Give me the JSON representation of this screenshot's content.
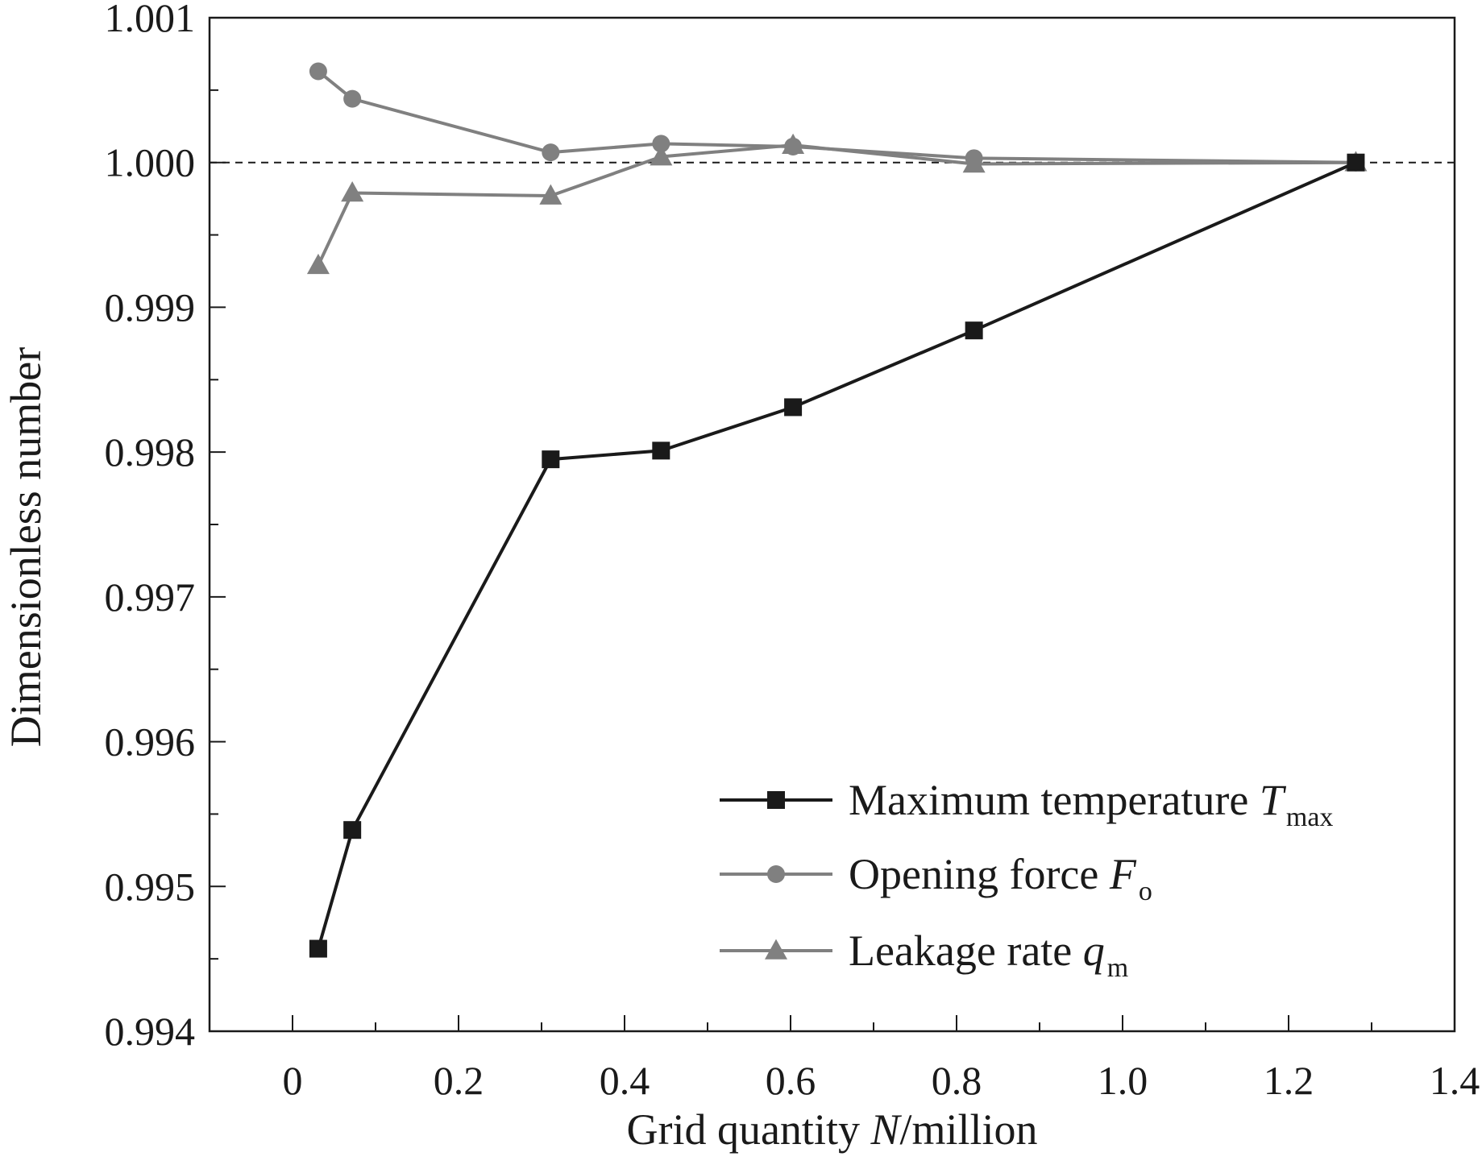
{
  "chart_data": {
    "type": "line",
    "xlabel": {
      "prefix": "Grid quantity ",
      "var": "N",
      "suffix": "/million"
    },
    "ylabel": "Dimensionless number",
    "xlim": [
      -0.1,
      1.4
    ],
    "ylim": [
      0.994,
      1.001
    ],
    "xticks": [
      0,
      0.2,
      0.4,
      0.6,
      0.8,
      1.0,
      1.2,
      1.4
    ],
    "xtick_labels": [
      "0",
      "0.2",
      "0.4",
      "0.6",
      "0.8",
      "1.0",
      "1.2",
      "1.4"
    ],
    "yticks": [
      0.994,
      0.995,
      0.996,
      0.997,
      0.998,
      0.999,
      1.0,
      1.001
    ],
    "ytick_labels": [
      "0.994",
      "0.995",
      "0.996",
      "0.997",
      "0.998",
      "0.999",
      "1.000",
      "1.001"
    ],
    "reference_line": {
      "y": 1.0,
      "style": "dashed"
    },
    "legend_position": "bottom-right",
    "series": [
      {
        "name": "Maximum temperature",
        "var": "T",
        "sub": "max",
        "marker": "square",
        "color": "#1a1a1a",
        "x": [
          0.031,
          0.072,
          0.311,
          0.444,
          0.603,
          0.821,
          1.281
        ],
        "y": [
          0.99457,
          0.99539,
          0.99795,
          0.99801,
          0.99831,
          0.99884,
          1.0
        ]
      },
      {
        "name": "Opening force",
        "var": "F",
        "sub": "o",
        "marker": "circle",
        "color": "#808080",
        "x": [
          0.031,
          0.072,
          0.311,
          0.444,
          0.603,
          0.821,
          1.281
        ],
        "y": [
          1.00063,
          1.00044,
          1.00007,
          1.00013,
          1.00011,
          1.00003,
          1.0
        ]
      },
      {
        "name": "Leakage rate",
        "var": "q",
        "sub": "m",
        "marker": "triangle",
        "color": "#808080",
        "x": [
          0.031,
          0.072,
          0.311,
          0.444,
          0.603,
          0.821,
          1.281
        ],
        "y": [
          0.99929,
          0.99979,
          0.99977,
          1.00004,
          1.00012,
          0.99999,
          1.0
        ]
      }
    ]
  }
}
